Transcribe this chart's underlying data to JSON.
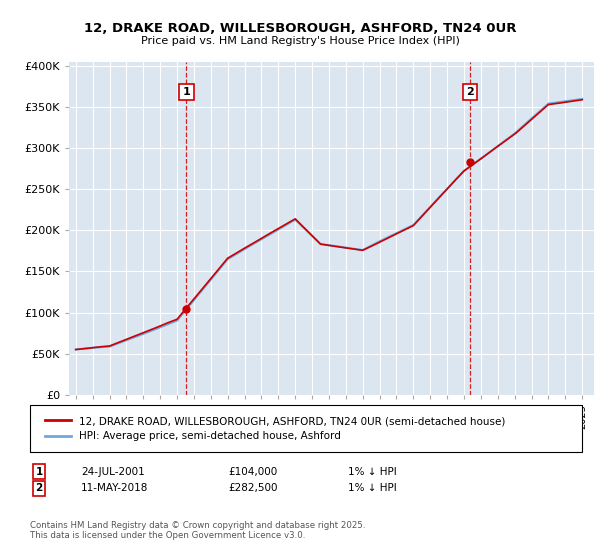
{
  "title_line1": "12, DRAKE ROAD, WILLESBOROUGH, ASHFORD, TN24 0UR",
  "title_line2": "Price paid vs. HM Land Registry's House Price Index (HPI)",
  "ylabel_ticks": [
    "£0",
    "£50K",
    "£100K",
    "£150K",
    "£200K",
    "£250K",
    "£300K",
    "£350K",
    "£400K"
  ],
  "ytick_values": [
    0,
    50000,
    100000,
    150000,
    200000,
    250000,
    300000,
    350000,
    400000
  ],
  "sale1_date": 2001.56,
  "sale1_price": 104000,
  "sale1_label": "1",
  "sale2_date": 2018.36,
  "sale2_price": 282500,
  "sale2_label": "2",
  "hpi_color": "#6fa8dc",
  "price_color": "#cc0000",
  "marker_box_color": "#cc0000",
  "bg_color": "#dce6f1",
  "grid_color": "#ffffff",
  "legend_line1": "12, DRAKE ROAD, WILLESBOROUGH, ASHFORD, TN24 0UR (semi-detached house)",
  "legend_line2": "HPI: Average price, semi-detached house, Ashford",
  "annotation1_date": "24-JUL-2001",
  "annotation1_price": "£104,000",
  "annotation1_hpi": "1% ↓ HPI",
  "annotation2_date": "11-MAY-2018",
  "annotation2_price": "£282,500",
  "annotation2_hpi": "1% ↓ HPI",
  "footer": "Contains HM Land Registry data © Crown copyright and database right 2025.\nThis data is licensed under the Open Government Licence v3.0."
}
